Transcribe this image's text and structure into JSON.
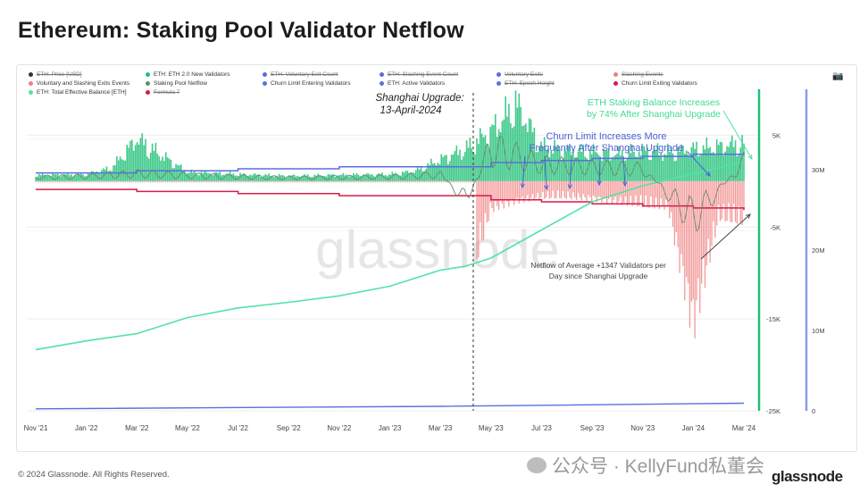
{
  "title": "Ethereum: Staking Pool Validator Netflow",
  "footer": "© 2024 Glassnode. All Rights Reserved.",
  "brand": "glassnode",
  "watermark": "glassnode",
  "wechat_overlay": "公众号 · KellyFund私董会",
  "legend": [
    {
      "label": "ETH: Price [USD]",
      "color": "#333333",
      "active": false
    },
    {
      "label": "ETH: ETH 2.0 New Validators",
      "color": "#1fbf75",
      "active": true
    },
    {
      "label": "ETH: Voluntary Exit Count",
      "color": "#5b6bd6",
      "active": false
    },
    {
      "label": "ETH: Slashing Event Count",
      "color": "#5b6bd6",
      "active": false
    },
    {
      "label": "Voluntary Exits",
      "color": "#5b6bd6",
      "active": false
    },
    {
      "label": "Slashing Events",
      "color": "#e8827a",
      "active": false
    },
    {
      "label": "Voluntary and Slashing Exits Events",
      "color": "#f08080",
      "active": true
    },
    {
      "label": "Staking Pool Netflow",
      "color": "#6a8a6a",
      "active": true
    },
    {
      "label": "Churn Limit Entering Validators",
      "color": "#5a6fe0",
      "active": true
    },
    {
      "label": "ETH: Active Validators",
      "color": "#5a6fe0",
      "active": true
    },
    {
      "label": "ETH: Epoch Height",
      "color": "#5a6fe0",
      "active": false
    },
    {
      "label": "Churn Limit Exiting Validators",
      "color": "#d81b4a",
      "active": true
    },
    {
      "label": "ETH: Total Effective Balance [ETH]",
      "color": "#50e3a4",
      "active": true
    },
    {
      "label": "Formula 7",
      "color": "#d81b4a",
      "active": false
    }
  ],
  "annotations": {
    "shanghai_line1": "Shanghai Upgrade:",
    "shanghai_line2": "13-April-2024",
    "balance_line1": "ETH Staking Balance Increases",
    "balance_line2": "by 74% After Shanghai Upgrade",
    "churn_line1": "Churn Limit Increases More",
    "churn_line2": "Frequently After Shanghai Upgrade",
    "netflow_line1": "Netflow of Average +1347 Validators per",
    "netflow_line2": "Day since Shanghai Upgrade"
  },
  "colors": {
    "new_validators": "#1fbf75",
    "exits": "#f08080",
    "netflow": "#6a8a6a",
    "churn_entering": "#5a6fe0",
    "active_validators": "#5a6fe0",
    "churn_exiting": "#d81b4a",
    "total_balance": "#50e3a4",
    "balance_axis": "#8a9be8",
    "vline": "#1fbf75"
  },
  "chart_data": {
    "type": "line",
    "x_ticks": [
      "Nov '21",
      "Jan '22",
      "Mar '22",
      "May '22",
      "Jul '22",
      "Sep '22",
      "Nov '22",
      "Jan '23",
      "Mar '23",
      "May '23",
      "Jul '23",
      "Sep '23",
      "Nov '23",
      "Jan '24",
      "Mar '24"
    ],
    "y_left_ticks": [
      "5K",
      "-5K",
      "-15K",
      "-25K"
    ],
    "y_left_range": [
      -25000,
      10000
    ],
    "y_right_ticks": [
      "30M",
      "20M",
      "10M",
      "0"
    ],
    "y_right_range": [
      0,
      40000000
    ],
    "series": [
      {
        "name": "ETH: Total Effective Balance [ETH]",
        "axis": "right",
        "x": [
          "Nov '21",
          "Jan '22",
          "Mar '22",
          "May '22",
          "Jul '22",
          "Sep '22",
          "Nov '22",
          "Jan '23",
          "Mar '23",
          "Apr '23",
          "May '23",
          "Jul '23",
          "Sep '23",
          "Nov '23",
          "Jan '24",
          "Mar '24"
        ],
        "values": [
          7600000,
          8700000,
          9600000,
          11600000,
          12800000,
          13500000,
          14300000,
          15500000,
          17500000,
          18000000,
          19000000,
          22500000,
          26000000,
          28000000,
          29500000,
          31000000
        ]
      },
      {
        "name": "Churn Limit Entering Validators",
        "axis": "left",
        "x": [
          "Nov '21",
          "Mar '22",
          "Jul '22",
          "Nov '22",
          "Mar '23",
          "May '23",
          "Jul '23",
          "Sep '23",
          "Nov '23",
          "Jan '24",
          "Mar '24"
        ],
        "values": [
          900,
          1125,
          1350,
          1575,
          1575,
          2025,
          2250,
          2475,
          2700,
          2925,
          3150
        ]
      },
      {
        "name": "Churn Limit Exiting Validators",
        "axis": "left",
        "x": [
          "Nov '21",
          "Mar '22",
          "Jul '22",
          "Nov '22",
          "Mar '23",
          "May '23",
          "Jul '23",
          "Sep '23",
          "Nov '23",
          "Jan '24",
          "Mar '24"
        ],
        "values": [
          -900,
          -1125,
          -1350,
          -1575,
          -1575,
          -2025,
          -2250,
          -2475,
          -2700,
          -2925,
          -3150
        ]
      },
      {
        "name": "ETH: Active Validators",
        "axis": "right",
        "x": [
          "Nov '21",
          "Mar '23",
          "Mar '24"
        ],
        "values": [
          240000,
          560000,
          940000
        ]
      },
      {
        "name": "ETH: ETH 2.0 New Validators",
        "axis": "left",
        "x": [
          "Nov '21",
          "Jan '22",
          "Feb '22",
          "Mar '22",
          "May '22",
          "Jul '22",
          "Sep '22",
          "Nov '22",
          "Jan '23",
          "Feb '23",
          "Mar '23",
          "Apr '23",
          "May '23",
          "Jun '23",
          "Jul '23",
          "Aug '23",
          "Sep '23",
          "Oct '23",
          "Nov '23",
          "Dec '23",
          "Jan '24",
          "Feb '24",
          "Mar '24"
        ],
        "values": [
          800,
          900,
          1700,
          5500,
          1200,
          900,
          700,
          800,
          900,
          1300,
          2800,
          4200,
          6500,
          10000,
          4500,
          4000,
          3800,
          3500,
          4000,
          3800,
          4200,
          4500,
          5000
        ]
      },
      {
        "name": "Voluntary and Slashing Exits Events",
        "axis": "left",
        "x": [
          "Apr '23",
          "May '23",
          "Jun '23",
          "Jul '23",
          "Aug '23",
          "Sep '23",
          "Oct '23",
          "Nov '23",
          "Dec '23",
          "Jan '24",
          "Feb '24",
          "Mar '24"
        ],
        "values": [
          -14000,
          -3500,
          -2500,
          -2000,
          -2000,
          -2200,
          -2600,
          -3000,
          -3200,
          -18000,
          -4500,
          -5000
        ]
      },
      {
        "name": "Staking Pool Netflow",
        "axis": "left",
        "x": [
          "Nov '21",
          "Jan '22",
          "Mar '22",
          "May '22",
          "Jul '22",
          "Sep '22",
          "Nov '22",
          "Jan '23",
          "Mar '23",
          "Apr '23",
          "May '23",
          "Jul '23",
          "Sep '23",
          "Nov '23",
          "Jan '24",
          "Mar '24"
        ],
        "values": [
          400,
          500,
          800,
          600,
          450,
          350,
          400,
          450,
          700,
          -2000,
          3500,
          1800,
          1500,
          1300,
          -4000,
          2000
        ]
      }
    ],
    "annotations": [
      {
        "x": "Apr '23",
        "label": "Shanghai Upgrade: 13-April-2024"
      }
    ]
  }
}
